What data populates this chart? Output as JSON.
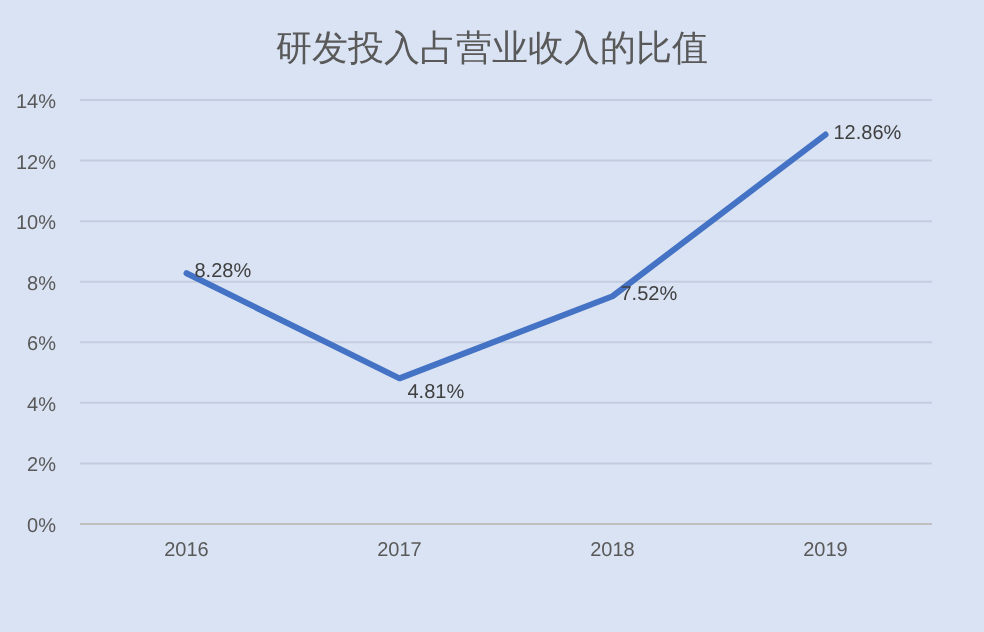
{
  "chart_data": {
    "type": "line",
    "title": "研发投入占营业收入的比值",
    "categories": [
      "2016",
      "2017",
      "2018",
      "2019"
    ],
    "series": [
      {
        "color": "#4472c4",
        "values": [
          8.28,
          4.81,
          7.52,
          12.86
        ],
        "value_labels": [
          "8.28%",
          "4.81%",
          "7.52%",
          "12.86%"
        ]
      }
    ],
    "ylim": [
      0,
      14
    ],
    "yticks": [
      {
        "value": 0,
        "label": "0%"
      },
      {
        "value": 2,
        "label": "2%"
      },
      {
        "value": 4,
        "label": "4%"
      },
      {
        "value": 6,
        "label": "6%"
      },
      {
        "value": 8,
        "label": "8%"
      },
      {
        "value": 10,
        "label": "10%"
      },
      {
        "value": 12,
        "label": "12%"
      },
      {
        "value": 14,
        "label": "14%"
      }
    ],
    "grid": "y",
    "marker": "none",
    "line_style": "solid"
  }
}
